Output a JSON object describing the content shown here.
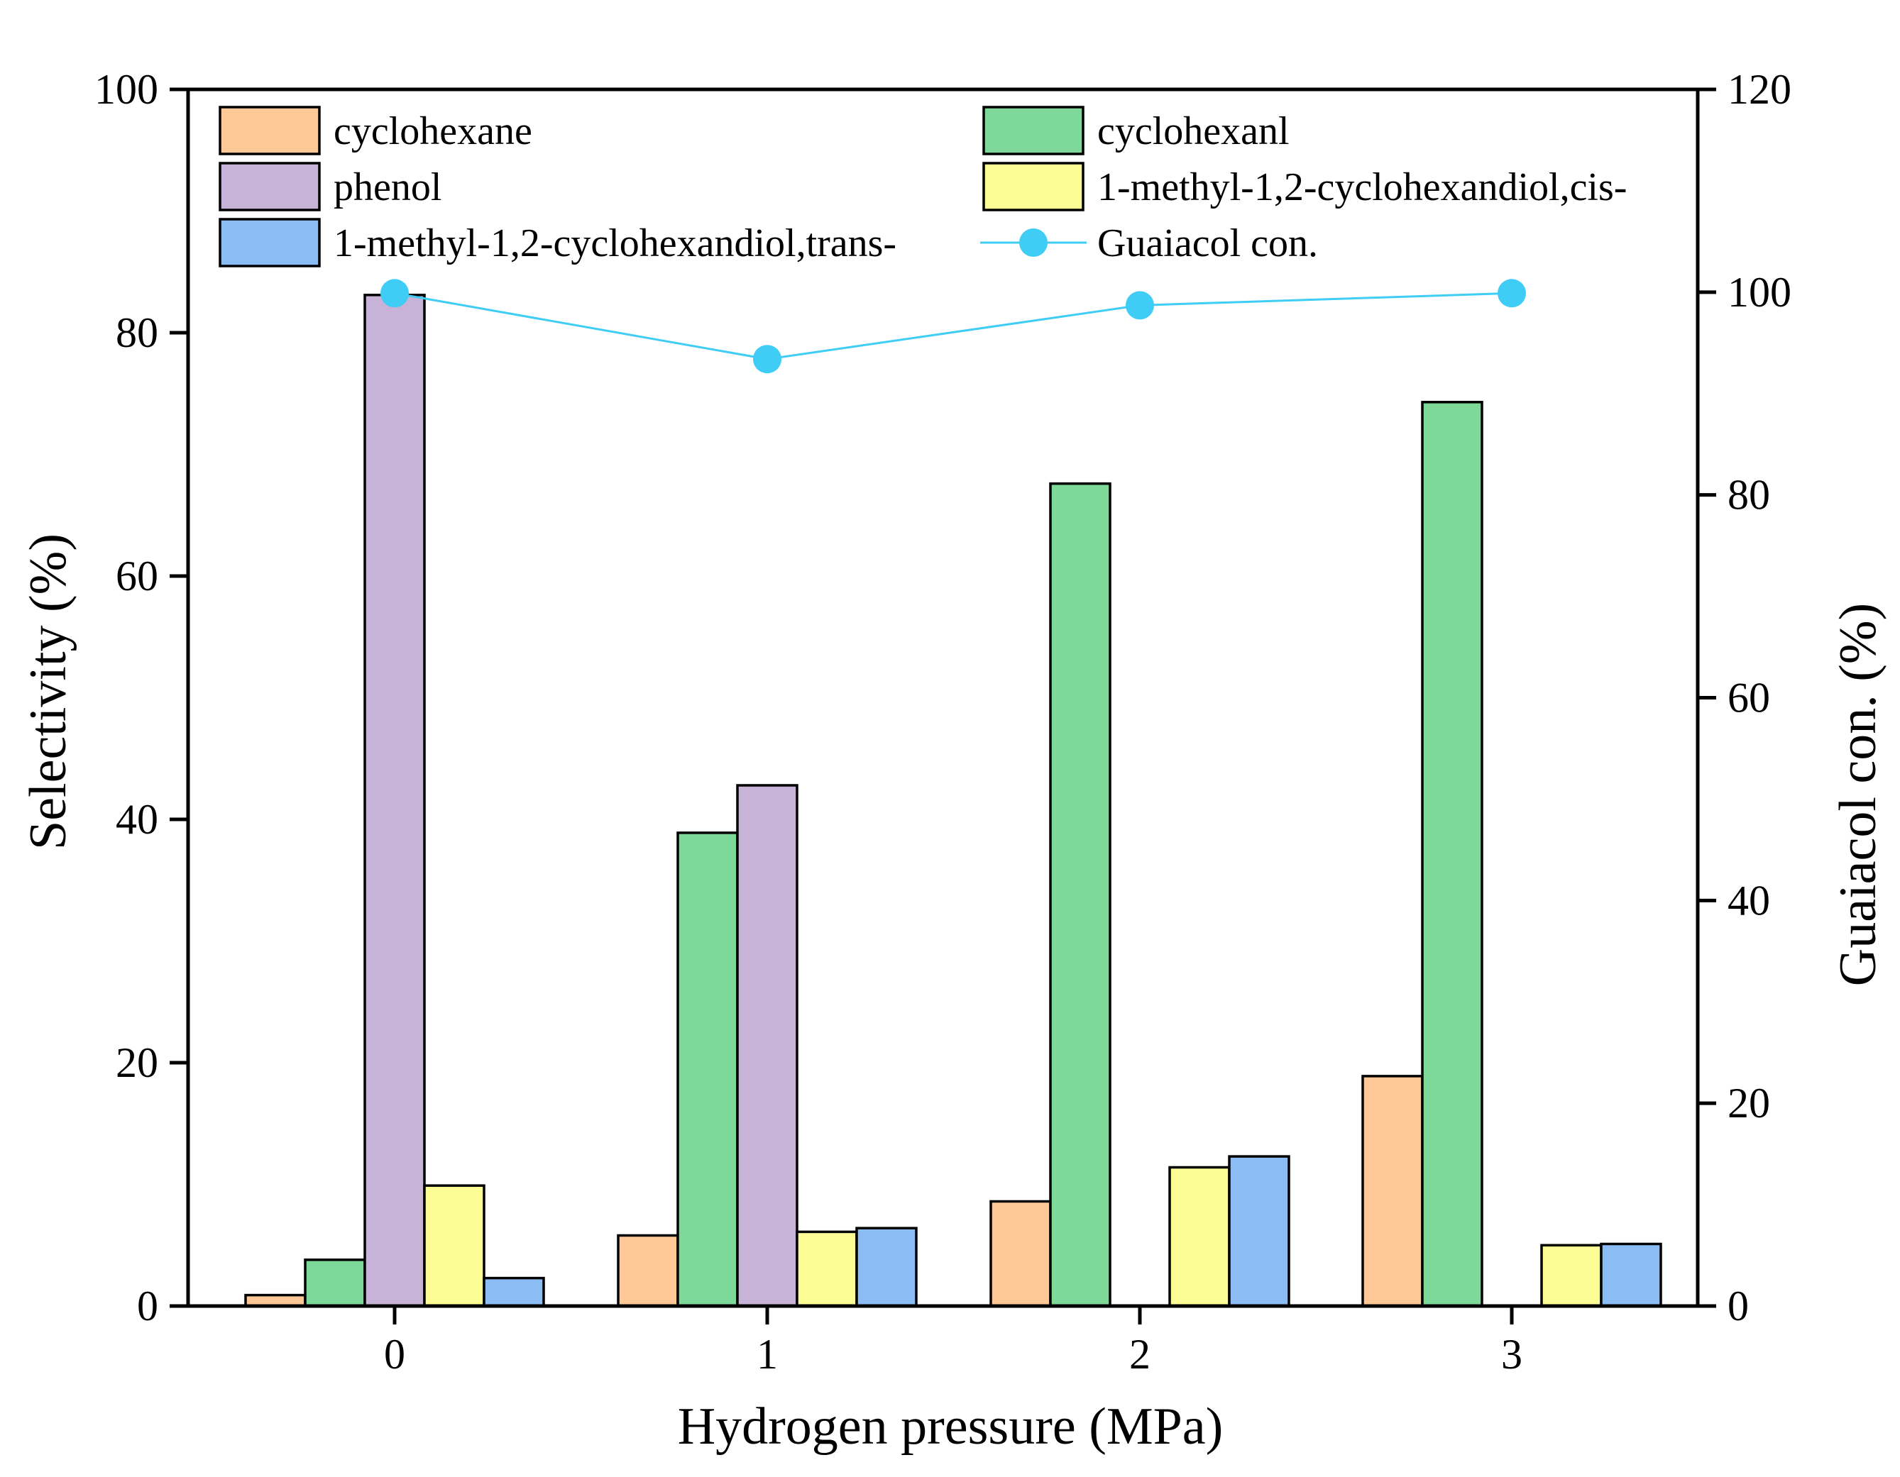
{
  "chart_data": {
    "type": "bar",
    "title": "",
    "xlabel": "Hydrogen pressure (MPa)",
    "ylabel": "Selectivity (%)",
    "y2label": "Guaiacol con. (%)",
    "categories": [
      "0",
      "1",
      "2",
      "3"
    ],
    "ylim": [
      0,
      100
    ],
    "y2lim": [
      0,
      120
    ],
    "yticks": [
      "0",
      "20",
      "40",
      "60",
      "80",
      "100"
    ],
    "y2ticks": [
      "0",
      "20",
      "40",
      "60",
      "80",
      "100",
      "120"
    ],
    "legend_position": "top",
    "series": [
      {
        "name": "cyclohexane",
        "color": "#fdc896",
        "values": [
          0.9,
          5.8,
          8.6,
          18.9
        ]
      },
      {
        "name": "cyclohexanl",
        "color": "#7ed898",
        "values": [
          3.8,
          38.9,
          67.6,
          74.3
        ]
      },
      {
        "name": "phenol",
        "color": "#c8b3d8",
        "values": [
          83.1,
          42.8,
          0,
          0
        ]
      },
      {
        "name": "1-methyl-1,2-cyclohexandiol,cis-",
        "color": "#fdfd96",
        "values": [
          9.9,
          6.1,
          11.4,
          5.0
        ]
      },
      {
        "name": "1-methyl-1,2-cyclohexandiol,trans-",
        "color": "#8cbcf4",
        "values": [
          2.3,
          6.4,
          12.3,
          5.1
        ]
      }
    ],
    "line_series": {
      "name": "Guaiacol con.",
      "color": "#3fcdf5",
      "axis": "right",
      "values": [
        99.9,
        93.4,
        98.7,
        99.9
      ]
    }
  }
}
